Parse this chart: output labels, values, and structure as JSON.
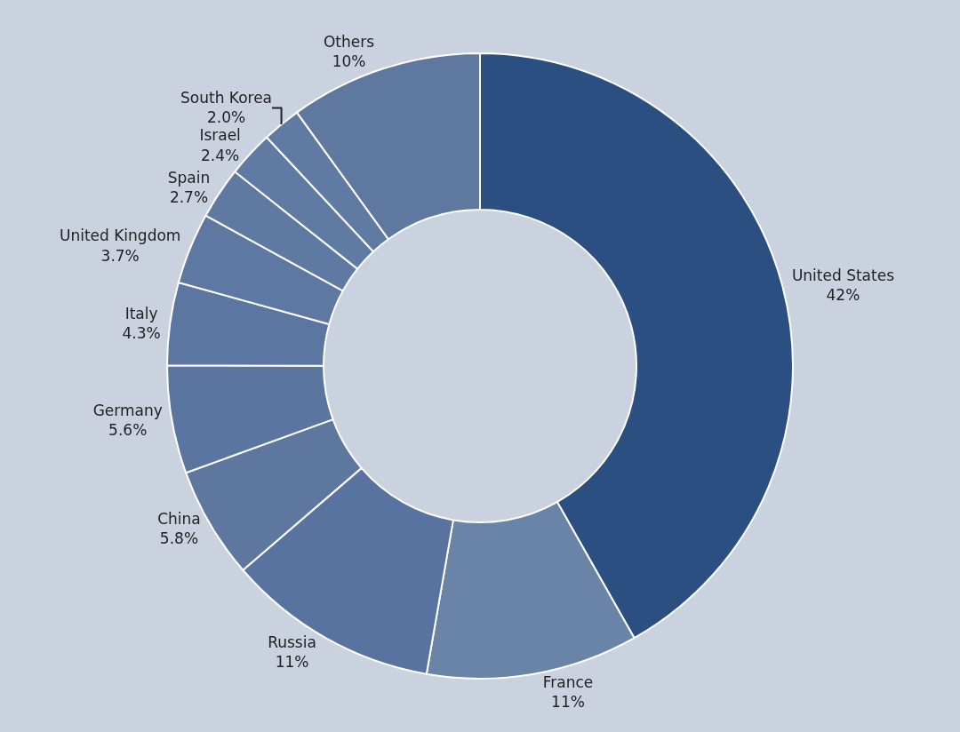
{
  "chart_data": {
    "type": "donut",
    "categories": [
      "United States",
      "France",
      "Russia",
      "China",
      "Germany",
      "Italy",
      "United Kingdom",
      "Spain",
      "Israel",
      "South Korea",
      "Others"
    ],
    "values": [
      42,
      11,
      11,
      5.8,
      5.6,
      4.3,
      3.7,
      2.7,
      2.4,
      2.0,
      10
    ],
    "value_labels": [
      "42%",
      "11%",
      "11%",
      "5.8%",
      "5.6%",
      "4.3%",
      "3.7%",
      "2.7%",
      "2.4%",
      "2.0%",
      "10%"
    ],
    "colors": [
      "#2b4f80",
      "#6a84a8",
      "#5873a0",
      "#5d779f",
      "#5a76a0",
      "#5b76a0",
      "#5d78a2",
      "#5e79a2",
      "#5f7aa3",
      "#607ba3",
      "#5e78a0"
    ],
    "legend": false
  }
}
